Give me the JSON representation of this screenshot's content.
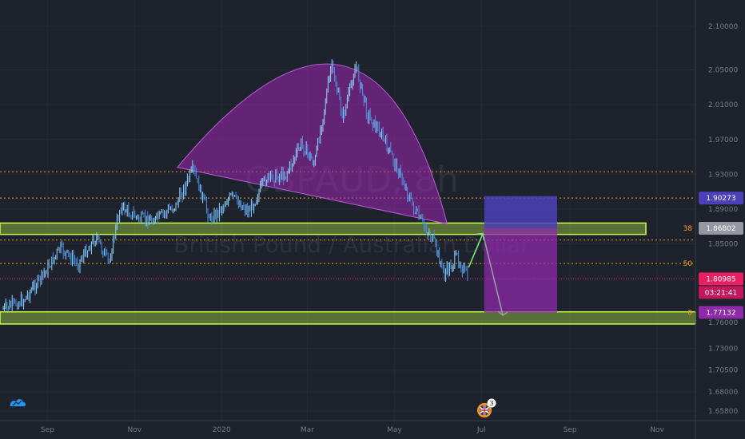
{
  "watermark": {
    "symbol": "GBPAUD, 8h",
    "name": "British Pound / Australian Dollar"
  },
  "chart_data": {
    "type": "candlestick",
    "x_tick_labels": [
      "Sep",
      "Nov",
      "2020",
      "Mar",
      "May",
      "Jul",
      "Sep",
      "Nov"
    ],
    "y_ticks": [
      2.1,
      2.05,
      2.01,
      1.97,
      1.93,
      1.89,
      1.85,
      1.81,
      1.76,
      1.73,
      1.705,
      1.68,
      1.658
    ],
    "y_tick_labels": [
      "2.10000",
      "2.05000",
      "2.01000",
      "1.97000",
      "1.93000",
      "1.89000",
      "1.85000",
      "1.81000",
      "1.76000",
      "1.73000",
      "1.70500",
      "1.68000",
      "1.65800"
    ],
    "ylim": [
      1.65,
      2.11
    ],
    "price_path": [
      {
        "x": "2019-08-01",
        "y": 1.775
      },
      {
        "x": "2019-08-15",
        "y": 1.785
      },
      {
        "x": "2019-08-28",
        "y": 1.812
      },
      {
        "x": "2019-09-10",
        "y": 1.845
      },
      {
        "x": "2019-09-22",
        "y": 1.827
      },
      {
        "x": "2019-10-05",
        "y": 1.858
      },
      {
        "x": "2019-10-14",
        "y": 1.828
      },
      {
        "x": "2019-10-22",
        "y": 1.893
      },
      {
        "x": "2019-11-05",
        "y": 1.878
      },
      {
        "x": "2019-11-16",
        "y": 1.878
      },
      {
        "x": "2019-11-30",
        "y": 1.895
      },
      {
        "x": "2019-12-12",
        "y": 1.935
      },
      {
        "x": "2019-12-24",
        "y": 1.878
      },
      {
        "x": "2020-01-08",
        "y": 1.905
      },
      {
        "x": "2020-01-20",
        "y": 1.887
      },
      {
        "x": "2020-02-01",
        "y": 1.925
      },
      {
        "x": "2020-02-15",
        "y": 1.93
      },
      {
        "x": "2020-02-26",
        "y": 1.965
      },
      {
        "x": "2020-03-06",
        "y": 1.942
      },
      {
        "x": "2020-03-18",
        "y": 2.055
      },
      {
        "x": "2020-03-26",
        "y": 1.995
      },
      {
        "x": "2020-04-04",
        "y": 2.055
      },
      {
        "x": "2020-04-12",
        "y": 2.0
      },
      {
        "x": "2020-04-22",
        "y": 1.975
      },
      {
        "x": "2020-05-05",
        "y": 1.93
      },
      {
        "x": "2020-05-16",
        "y": 1.885
      },
      {
        "x": "2020-05-28",
        "y": 1.855
      },
      {
        "x": "2020-06-05",
        "y": 1.815
      },
      {
        "x": "2020-06-14",
        "y": 1.835
      },
      {
        "x": "2020-06-22",
        "y": 1.809
      }
    ],
    "levels": {
      "fib_0": 1.77132,
      "fib_38": 1.86802,
      "fib_50": 1.8275,
      "upper": 1.90273,
      "top": 1.933,
      "lower": 1.8545,
      "current": 1.80985
    },
    "level_labels": {
      "fib_38": "38",
      "fib_50": "50",
      "fib_0": "0"
    },
    "support_zone": [
      1.758,
      1.772
    ],
    "resistance_zone": [
      1.861,
      1.874
    ],
    "cup_arc": {
      "start": {
        "x": "2019-12-01",
        "y": 1.938
      },
      "peak": {
        "x": "2020-03-25",
        "y": 2.055
      },
      "end": {
        "x": "2020-06-07",
        "y": 1.873
      }
    },
    "projection_rect": {
      "x0": "2020-07-03",
      "x1": "2020-08-23",
      "y_top": 1.905,
      "y_mid": 1.868,
      "y_bottom": 1.771
    },
    "forecast_path": [
      {
        "x": "2020-06-22",
        "y": 1.823
      },
      {
        "x": "2020-07-02",
        "y": 1.862
      },
      {
        "x": "2020-07-16",
        "y": 1.768
      }
    ],
    "price_labels": {
      "upper": "1.90273",
      "mid": "1.86802",
      "current": "1.80985",
      "countdown": "03:21:41",
      "lower": "1.77132"
    },
    "colors": {
      "candles": "#4a90e2",
      "support_zone": "#c6ff4d",
      "fib_lines": "#f7a21b",
      "current_line": "#e91e63",
      "cup": "#9c27b0",
      "projection_upper": "#4c3fb8",
      "projection_lower": "#8e2aa8",
      "forecast_up": "#7cf07c",
      "forecast_down": "#9aa0a6"
    }
  },
  "events": {
    "flag_icon": "uk-flag-icon",
    "count": "3"
  },
  "logo": "tradingview-cloud-icon"
}
